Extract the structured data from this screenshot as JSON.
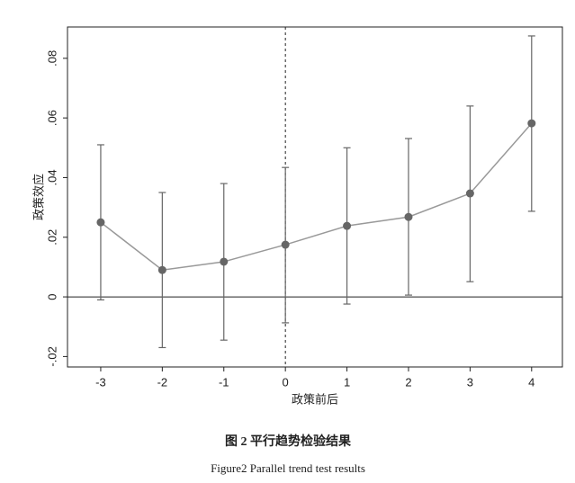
{
  "chart_data": {
    "type": "errorbar-line",
    "xlabel": "政策前后",
    "ylabel": "政策效应",
    "caption_cn": "图 2  平行趋势检验结果",
    "caption_en": "Figure2 Parallel trend test results",
    "series": [
      {
        "x": [
          -3,
          -2,
          -1,
          0,
          1,
          2,
          3,
          4
        ],
        "values": [
          0.025,
          0.009,
          0.0118,
          0.0175,
          0.0238,
          0.0268,
          0.0347,
          0.0582
        ],
        "lower": [
          -0.001,
          -0.017,
          -0.0145,
          -0.0087,
          -0.0024,
          0.0006,
          0.0051,
          0.0287
        ],
        "upper": [
          0.051,
          0.035,
          0.038,
          0.0434,
          0.05,
          0.0531,
          0.064,
          0.0875
        ],
        "color": "#666666"
      }
    ],
    "xlim": [
      -3.54,
      4.5
    ],
    "ylim": [
      -0.0235,
      0.0905
    ],
    "xticks": [
      -3,
      -2,
      -1,
      0,
      1,
      2,
      3,
      4
    ],
    "yticks": [
      {
        "value": -0.02,
        "label": "-.02"
      },
      0,
      {
        "value": 0.02,
        "label": ".02"
      },
      {
        "value": 0.04,
        "label": ".04"
      },
      {
        "value": 0.06,
        "label": ".06"
      },
      {
        "value": 0.08,
        "label": ".08"
      }
    ],
    "hline": 0,
    "vline": 0
  }
}
